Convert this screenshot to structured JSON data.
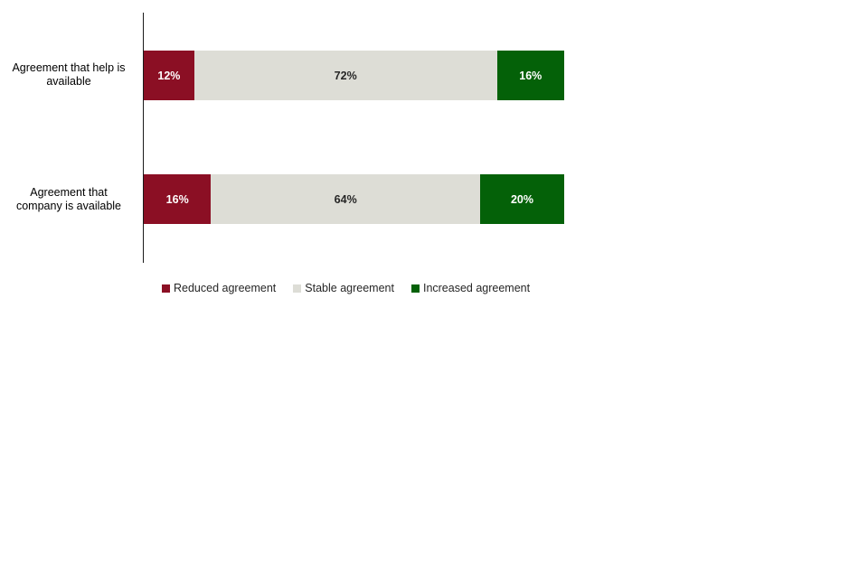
{
  "page": {
    "background": "#FFFFFF"
  },
  "colors": {
    "reduced": "#8B0F24",
    "stable": "#DDDDD6",
    "increased": "#046108",
    "axis": "#1A1A1A",
    "label_on_dark": "#FFFFFF",
    "label_on_light": "#262626",
    "category_text": "#000000",
    "legend_text": "#262626"
  },
  "chart_data": {
    "type": "bar",
    "orientation": "horizontal",
    "stacked": true,
    "unit": "%",
    "xlim": [
      0,
      100
    ],
    "grid": false,
    "axis_line": "left-vertical",
    "legend_position": "bottom",
    "categories": [
      {
        "label": "Agreement that help is available",
        "label_lines": [
          "Agreement that help is",
          "available"
        ]
      },
      {
        "label": "Agreement that company is available",
        "label_lines": [
          "Agreement that",
          "company is available"
        ]
      }
    ],
    "series": [
      {
        "name": "Reduced agreement",
        "values": [
          12,
          16
        ],
        "labels": [
          "12%",
          "16%"
        ],
        "color": "#8B0F24",
        "label_color": "#FFFFFF"
      },
      {
        "name": "Stable agreement",
        "values": [
          72,
          64
        ],
        "labels": [
          "72%",
          "64%"
        ],
        "color": "#DDDDD6",
        "label_color": "#262626"
      },
      {
        "name": "Increased agreement",
        "values": [
          16,
          20
        ],
        "labels": [
          "16%",
          "20%"
        ],
        "color": "#046108",
        "label_color": "#FFFFFF"
      }
    ]
  }
}
